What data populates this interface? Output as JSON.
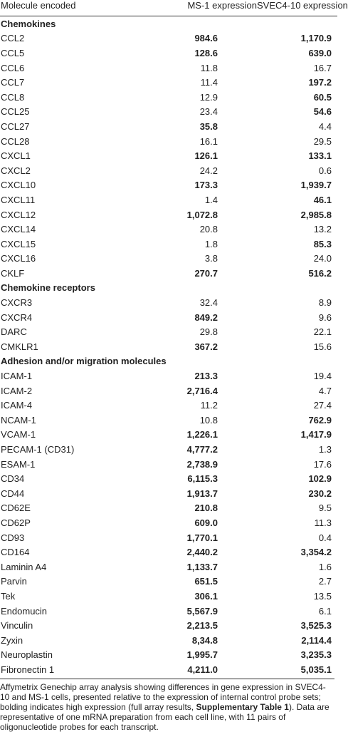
{
  "table": {
    "header": [
      "Molecule encoded",
      "MS-1 expression",
      "SVEC4-10 expression"
    ],
    "sections": [
      {
        "title": "Chemokines",
        "rows": [
          {
            "cells": [
              "CCL2",
              "984.6",
              "1,170.9"
            ],
            "bold": [
              true,
              true
            ]
          },
          {
            "cells": [
              "CCL5",
              "128.6",
              "639.0"
            ],
            "bold": [
              true,
              true
            ]
          },
          {
            "cells": [
              "CCL6",
              "11.8",
              "16.7"
            ],
            "bold": [
              false,
              false
            ]
          },
          {
            "cells": [
              "CCL7",
              "11.4",
              "197.2"
            ],
            "bold": [
              false,
              true
            ]
          },
          {
            "cells": [
              "CCL8",
              "12.9",
              "60.5"
            ],
            "bold": [
              false,
              true
            ]
          },
          {
            "cells": [
              "CCL25",
              "23.4",
              "54.6"
            ],
            "bold": [
              false,
              true
            ]
          },
          {
            "cells": [
              "CCL27",
              "35.8",
              "4.4"
            ],
            "bold": [
              true,
              false
            ]
          },
          {
            "cells": [
              "CCL28",
              "16.1",
              "29.5"
            ],
            "bold": [
              false,
              false
            ]
          },
          {
            "cells": [
              "CXCL1",
              "126.1",
              "133.1"
            ],
            "bold": [
              true,
              true
            ]
          },
          {
            "cells": [
              "CXCL2",
              "24.2",
              "0.6"
            ],
            "bold": [
              false,
              false
            ]
          },
          {
            "cells": [
              "CXCL10",
              "173.3",
              "1,939.7"
            ],
            "bold": [
              true,
              true
            ]
          },
          {
            "cells": [
              "CXCL11",
              "1.4",
              "46.1"
            ],
            "bold": [
              false,
              true
            ]
          },
          {
            "cells": [
              "CXCL12",
              "1,072.8",
              "2,985.8"
            ],
            "bold": [
              true,
              true
            ]
          },
          {
            "cells": [
              "CXCL14",
              "20.8",
              "13.2"
            ],
            "bold": [
              false,
              false
            ]
          },
          {
            "cells": [
              "CXCL15",
              "1.8",
              "85.3"
            ],
            "bold": [
              false,
              true
            ]
          },
          {
            "cells": [
              "CXCL16",
              "3.8",
              "24.0"
            ],
            "bold": [
              false,
              false
            ]
          },
          {
            "cells": [
              "CKLF",
              "270.7",
              "516.2"
            ],
            "bold": [
              true,
              true
            ]
          }
        ]
      },
      {
        "title": "Chemokine receptors",
        "rows": [
          {
            "cells": [
              "CXCR3",
              "32.4",
              "8.9"
            ],
            "bold": [
              false,
              false
            ]
          },
          {
            "cells": [
              "CXCR4",
              "849.2",
              "9.6"
            ],
            "bold": [
              true,
              false
            ]
          },
          {
            "cells": [
              "DARC",
              "29.8",
              "22.1"
            ],
            "bold": [
              false,
              false
            ]
          },
          {
            "cells": [
              "CMKLR1",
              "367.2",
              "15.6"
            ],
            "bold": [
              true,
              false
            ]
          }
        ]
      },
      {
        "title": "Adhesion and/or migration molecules",
        "rows": [
          {
            "cells": [
              "ICAM-1",
              "213.3",
              "19.4"
            ],
            "bold": [
              true,
              false
            ]
          },
          {
            "cells": [
              "ICAM-2",
              "2,716.4",
              "4.7"
            ],
            "bold": [
              true,
              false
            ]
          },
          {
            "cells": [
              "ICAM-4",
              "11.2",
              "27.4"
            ],
            "bold": [
              false,
              false
            ]
          },
          {
            "cells": [
              "NCAM-1",
              "10.8",
              "762.9"
            ],
            "bold": [
              false,
              true
            ]
          },
          {
            "cells": [
              "VCAM-1",
              "1,226.1",
              "1,417.9"
            ],
            "bold": [
              true,
              true
            ]
          },
          {
            "cells": [
              "PECAM-1 (CD31)",
              "4,777.2",
              "1.3"
            ],
            "bold": [
              true,
              false
            ]
          },
          {
            "cells": [
              "ESAM-1",
              "2,738.9",
              "17.6"
            ],
            "bold": [
              true,
              false
            ]
          },
          {
            "cells": [
              "CD34",
              "6,115.3",
              "102.9"
            ],
            "bold": [
              true,
              true
            ]
          },
          {
            "cells": [
              "CD44",
              "1,913.7",
              "230.2"
            ],
            "bold": [
              true,
              true
            ]
          },
          {
            "cells": [
              "CD62E",
              "210.8",
              "9.5"
            ],
            "bold": [
              true,
              false
            ]
          },
          {
            "cells": [
              "CD62P",
              "609.0",
              "11.3"
            ],
            "bold": [
              true,
              false
            ]
          },
          {
            "cells": [
              "CD93",
              "1,770.1",
              "0.4"
            ],
            "bold": [
              true,
              false
            ]
          },
          {
            "cells": [
              "CD164",
              "2,440.2",
              "3,354.2"
            ],
            "bold": [
              true,
              true
            ]
          },
          {
            "cells": [
              "Laminin A4",
              "1,133.7",
              "1.6"
            ],
            "bold": [
              true,
              false
            ]
          },
          {
            "cells": [
              "Parvin",
              "651.5",
              "2.7"
            ],
            "bold": [
              true,
              false
            ]
          },
          {
            "cells": [
              "Tek",
              "306.1",
              "13.5"
            ],
            "bold": [
              true,
              false
            ]
          },
          {
            "cells": [
              "Endomucin",
              "5,567.9",
              "6.1"
            ],
            "bold": [
              true,
              false
            ]
          },
          {
            "cells": [
              "Vinculin",
              "2,213.5",
              "3,525.3"
            ],
            "bold": [
              true,
              true
            ]
          },
          {
            "cells": [
              "Zyxin",
              "8,34.8",
              "2,114.4"
            ],
            "bold": [
              true,
              true
            ]
          },
          {
            "cells": [
              "Neuroplastin",
              "1,995.7",
              "3,235.3"
            ],
            "bold": [
              true,
              true
            ]
          },
          {
            "cells": [
              "Fibronectin 1",
              "4,211.0",
              "5,035.1"
            ],
            "bold": [
              true,
              true
            ]
          }
        ]
      }
    ]
  },
  "footnote": {
    "before": "Affymetrix Genechip array analysis showing differences in gene expression in SVEC4-10 and MS-1 cells, presented relative to the expression of internal control probe sets; bolding indicates high expression (full array results, ",
    "bold": "Supplementary Table 1",
    "after": "). Data are representative of one mRNA preparation from each cell line, with 11 pairs of oligonucleotide probes for each transcript."
  }
}
